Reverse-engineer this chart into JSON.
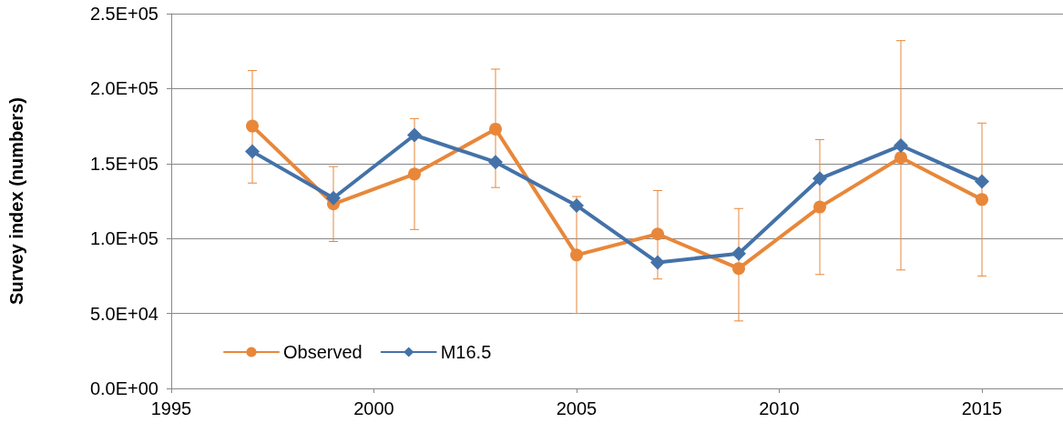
{
  "chart_data": {
    "type": "line",
    "ylabel": "Survey index (numbers)",
    "x": [
      1997,
      1999,
      2001,
      2003,
      2005,
      2007,
      2009,
      2011,
      2013,
      2015
    ],
    "series": [
      {
        "name": "Observed",
        "color": "#e8873a",
        "marker": "circle",
        "values": [
          175000,
          123000,
          143000,
          173000,
          89000,
          103000,
          80000,
          121000,
          154000,
          126000
        ],
        "errors": [
          [
            137000,
            212000
          ],
          [
            98000,
            148000
          ],
          [
            106000,
            180000
          ],
          [
            134000,
            213000
          ],
          [
            50000,
            128000
          ],
          [
            73000,
            132000
          ],
          [
            45000,
            120000
          ],
          [
            76000,
            166000
          ],
          [
            79000,
            232000
          ],
          [
            75000,
            177000
          ]
        ]
      },
      {
        "name": "M16.5",
        "color": "#4472a8",
        "marker": "diamond",
        "values": [
          158000,
          127000,
          169000,
          151000,
          122000,
          84000,
          90000,
          140000,
          162000,
          138000
        ]
      }
    ],
    "xlim": [
      1995,
      2017
    ],
    "xticks": [
      1995,
      2000,
      2005,
      2010,
      2015
    ],
    "ylim": [
      0,
      250000
    ],
    "yticks": [
      {
        "value": 0,
        "label": "0.0E+00"
      },
      {
        "value": 50000,
        "label": "5.0E+04"
      },
      {
        "value": 100000,
        "label": "1.0E+05"
      },
      {
        "value": 150000,
        "label": "1.5E+05"
      },
      {
        "value": 200000,
        "label": "2.0E+05"
      },
      {
        "value": 250000,
        "label": "2.5E+05"
      }
    ],
    "grid": "y",
    "legend": "bottom left",
    "line_style": "solid"
  }
}
